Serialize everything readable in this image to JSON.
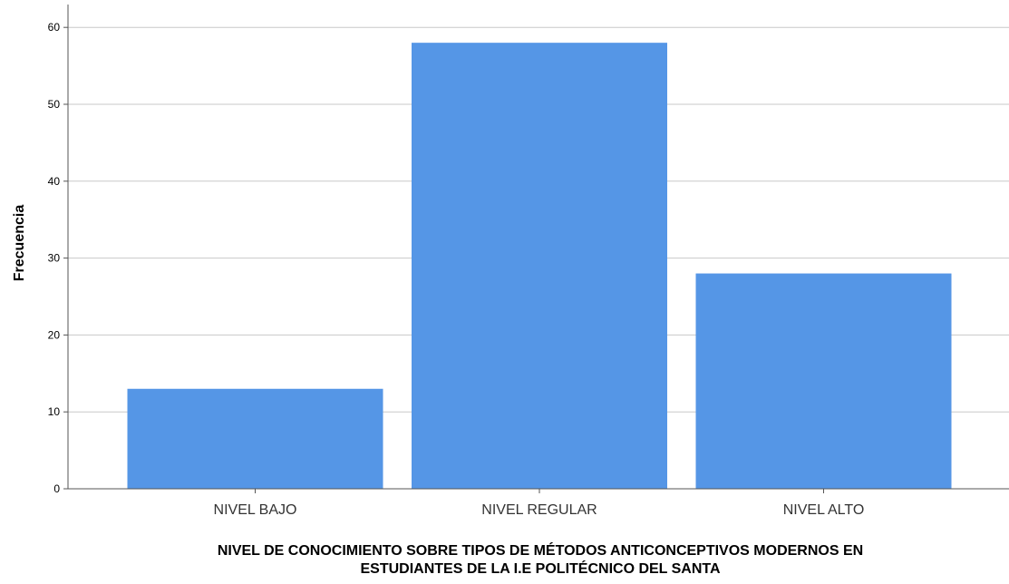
{
  "chart_data": {
    "type": "bar",
    "categories": [
      "NIVEL BAJO",
      "NIVEL REGULAR",
      "NIVEL ALTO"
    ],
    "values": [
      13,
      58,
      28
    ],
    "xlabel": [
      "NIVEL DE CONOCIMIENTO SOBRE TIPOS DE MÉTODOS ANTICONCEPTIVOS MODERNOS EN",
      "ESTUDIANTES DE LA I.E POLITÉCNICO DEL SANTA"
    ],
    "ylabel": "Frecuencia",
    "yticks": [
      0,
      10,
      20,
      30,
      40,
      50,
      60
    ],
    "ylim": [
      0,
      63
    ],
    "grid": true,
    "bar_color": "#5596e6"
  }
}
